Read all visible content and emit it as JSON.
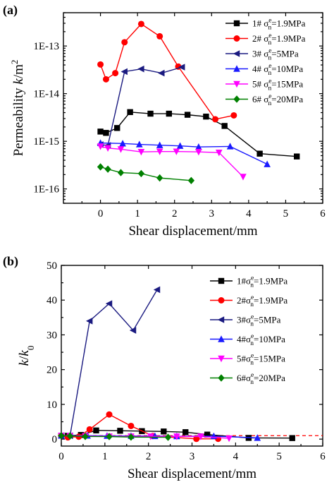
{
  "chart_data": [
    {
      "panel_label": "(a)",
      "type": "line",
      "xlabel": "Shear displacement/mm",
      "ylabel": "Permeability k/m²",
      "ylabel_parts": {
        "pre": "Permeability ",
        "var": "k",
        "mid": "/m",
        "sup": "2"
      },
      "yscale": "log",
      "xlim": [
        -1,
        6
      ],
      "ylim": [
        5e-17,
        5e-13
      ],
      "xticks": [
        "0",
        "1",
        "2",
        "3",
        "4",
        "5",
        "6"
      ],
      "yticks": [
        "1E-16",
        "1E-15",
        "1E-14",
        "1E-13"
      ],
      "legend_position": "top-right",
      "series": [
        {
          "name": "1# σne=1.9MPa",
          "prefix": "1# σ",
          "sub": "n",
          "sup": "e",
          "suffix": "=1.9MPa",
          "color": "#000000",
          "marker": "square",
          "x": [
            0,
            0.15,
            0.45,
            0.8,
            1.35,
            1.85,
            2.35,
            2.85,
            3.35,
            4.3,
            5.3
          ],
          "y": [
            1.6e-15,
            1.5e-15,
            1.9e-15,
            4.1e-15,
            3.8e-15,
            3.8e-15,
            3.6e-15,
            3.3e-15,
            2.1e-15,
            5.5e-16,
            4.8e-16
          ]
        },
        {
          "name": "2# σne=1.9MPa",
          "prefix": "2# σ",
          "sub": "n",
          "sup": "e",
          "suffix": "=1.9MPa",
          "color": "#ff0000",
          "marker": "circle",
          "x": [
            0,
            0.15,
            0.4,
            0.65,
            1.1,
            1.6,
            2.1,
            3.1,
            3.6
          ],
          "y": [
            4.1e-14,
            2e-14,
            2.7e-14,
            1.2e-13,
            2.9e-13,
            1.6e-13,
            3.7e-14,
            2.9e-15,
            3.5e-15
          ]
        },
        {
          "name": "3# σne=5MPa",
          "prefix": "3# σ",
          "sub": "n",
          "sup": "e",
          "suffix": "=5MPa",
          "color": "#1a1a80",
          "marker": "triangle-left",
          "x": [
            0,
            0.2,
            0.65,
            1.1,
            1.65,
            2.2
          ],
          "y": [
            8.5e-16,
            8.2e-16,
            2.9e-14,
            3.3e-14,
            2.7e-14,
            3.6e-14
          ]
        },
        {
          "name": "4# σne=10MPa",
          "prefix": "4# σ",
          "sub": "n",
          "sup": "e",
          "suffix": "=10MPa",
          "color": "#1a1aff",
          "marker": "triangle-up",
          "x": [
            0,
            0.6,
            1.05,
            1.6,
            2.15,
            2.65,
            3.5,
            4.5
          ],
          "y": [
            9.2e-16,
            9e-16,
            8.6e-16,
            8.3e-16,
            8e-16,
            7.6e-16,
            7.8e-16,
            3.3e-16
          ]
        },
        {
          "name": "5# σne=15MPa",
          "prefix": "5# σ",
          "sub": "n",
          "sup": "e",
          "suffix": "=15MPa",
          "color": "#ff00ff",
          "marker": "triangle-down",
          "x": [
            0,
            0.2,
            0.55,
            1.1,
            1.6,
            2.05,
            2.65,
            3.2,
            3.85
          ],
          "y": [
            7.8e-16,
            7.2e-16,
            6.8e-16,
            6e-16,
            6.1e-16,
            6.1e-16,
            6e-16,
            5.8e-16,
            1.8e-16
          ]
        },
        {
          "name": "6# σne=20MPa",
          "prefix": "6# σ",
          "sub": "n",
          "sup": "e",
          "suffix": "=20MPa",
          "color": "#008000",
          "marker": "diamond",
          "x": [
            0,
            0.2,
            0.55,
            1.1,
            1.6,
            2.45
          ],
          "y": [
            2.9e-16,
            2.6e-16,
            2.2e-16,
            2.1e-16,
            1.7e-16,
            1.5e-16
          ]
        }
      ]
    },
    {
      "panel_label": "(b)",
      "type": "line",
      "xlabel": "Shear displacement/mm",
      "ylabel": "k/k0",
      "ylabel_parts": {
        "var": "k",
        "mid": "/",
        "var2": "k",
        "sub": "0"
      },
      "yscale": "linear",
      "xlim": [
        0,
        6
      ],
      "ylim": [
        -2,
        50
      ],
      "xticks": [
        "0",
        "1",
        "2",
        "3",
        "4",
        "5",
        "6"
      ],
      "yticks": [
        "0",
        "10",
        "20",
        "30",
        "40",
        "50"
      ],
      "reference_line": {
        "y": 1,
        "color": "#ff0000",
        "style": "dashed"
      },
      "legend_position": "right",
      "series": [
        {
          "name": "1#σne=1.9MPa",
          "prefix": "1#σ",
          "sub": "n",
          "sup": "e",
          "suffix": "=1.9MPa",
          "color": "#000000",
          "marker": "square",
          "x": [
            0,
            0.15,
            0.45,
            0.8,
            1.35,
            1.85,
            2.35,
            2.85,
            3.35,
            4.3,
            5.3
          ],
          "y": [
            1.0,
            0.95,
            1.2,
            2.5,
            2.4,
            2.3,
            2.2,
            2.0,
            1.3,
            0.35,
            0.3
          ]
        },
        {
          "name": "2#σne=1.9MPa",
          "prefix": "2#σ",
          "sub": "n",
          "sup": "e",
          "suffix": "=1.9MPa",
          "color": "#ff0000",
          "marker": "circle",
          "x": [
            0,
            0.15,
            0.4,
            0.65,
            1.1,
            1.6,
            2.1,
            3.1,
            3.6
          ],
          "y": [
            1.0,
            0.5,
            0.7,
            2.8,
            7.1,
            3.8,
            0.9,
            0.07,
            0.09
          ]
        },
        {
          "name": "3#σne=5MPa",
          "prefix": "3#σ",
          "sub": "n",
          "sup": "e",
          "suffix": "=5MPa",
          "color": "#1a1a80",
          "marker": "triangle-left",
          "x": [
            0,
            0.2,
            0.65,
            1.1,
            1.65,
            2.2
          ],
          "y": [
            1.0,
            0.95,
            34,
            39,
            31.3,
            43
          ]
        },
        {
          "name": "4#σne=10MPa",
          "prefix": "4#σ",
          "sub": "n",
          "sup": "e",
          "suffix": "=10MPa",
          "color": "#1a1aff",
          "marker": "triangle-up",
          "x": [
            0,
            0.6,
            1.05,
            1.6,
            2.15,
            2.65,
            3.5,
            4.5
          ],
          "y": [
            1.0,
            0.98,
            0.93,
            0.9,
            0.87,
            0.83,
            0.85,
            0.36
          ]
        },
        {
          "name": "5#σne=15MPa",
          "prefix": "5#σ",
          "sub": "n",
          "sup": "e",
          "suffix": "=15MPa",
          "color": "#ff00ff",
          "marker": "triangle-down",
          "x": [
            0,
            0.2,
            0.55,
            1.1,
            1.6,
            2.05,
            2.65,
            3.2,
            3.85
          ],
          "y": [
            1.0,
            0.92,
            0.87,
            0.77,
            0.78,
            0.78,
            0.77,
            0.74,
            0.23
          ]
        },
        {
          "name": "6#σne=20MPa",
          "prefix": "6#σ",
          "sub": "n",
          "sup": "e",
          "suffix": "=20MPa",
          "color": "#008000",
          "marker": "diamond",
          "x": [
            0,
            0.2,
            0.55,
            1.1,
            1.6,
            2.45
          ],
          "y": [
            1.0,
            0.9,
            0.76,
            0.72,
            0.59,
            0.52
          ]
        }
      ]
    }
  ]
}
